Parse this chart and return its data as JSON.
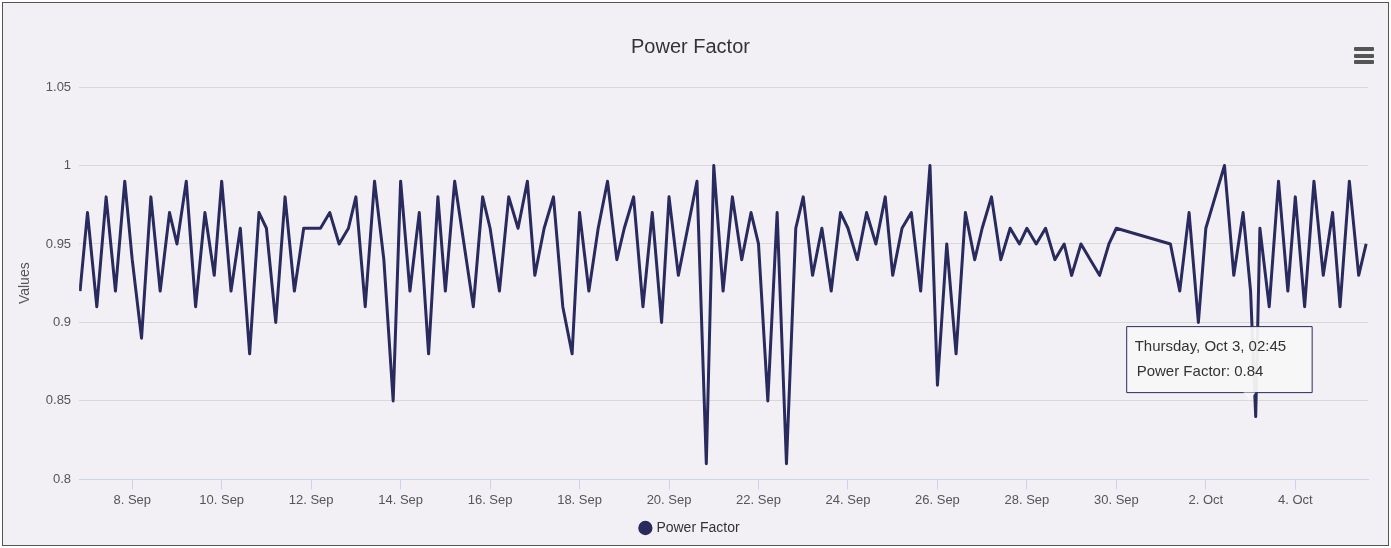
{
  "chart_data": {
    "type": "line",
    "title": "Power Factor",
    "ylabel": "Values",
    "x": [
      "--09-06T20:00",
      "--09-07T00:00",
      "--09-07T05:00",
      "--09-07T10:00",
      "--09-07T15:00",
      "--09-07T20:00",
      "--09-08T00:00",
      "--09-08T05:00",
      "--09-08T10:00",
      "--09-08T15:00",
      "--09-08T20:00",
      "--09-09T00:00",
      "--09-09T05:00",
      "--09-09T10:00",
      "--09-09T15:00",
      "--09-09T20:00",
      "--09-10T00:00",
      "--09-10T05:00",
      "--09-10T10:00",
      "--09-10T15:00",
      "--09-10T20:00",
      "--09-11T00:00",
      "--09-11T05:00",
      "--09-11T10:00",
      "--09-11T15:00",
      "--09-11T20:00",
      "--09-12T00:00",
      "--09-12T05:00",
      "--09-12T10:00",
      "--09-12T15:00",
      "--09-12T20:00",
      "--09-13T00:00",
      "--09-13T05:00",
      "--09-13T10:00",
      "--09-13T15:00",
      "--09-13T20:00",
      "--09-14T00:00",
      "--09-14T05:00",
      "--09-14T10:00",
      "--09-14T15:00",
      "--09-14T20:00",
      "--09-15T00:00",
      "--09-15T05:00",
      "--09-15T10:00",
      "--09-15T15:00",
      "--09-15T20:00",
      "--09-16T00:00",
      "--09-16T05:00",
      "--09-16T10:00",
      "--09-16T15:00",
      "--09-16T20:00",
      "--09-17T00:00",
      "--09-17T05:00",
      "--09-17T10:00",
      "--09-17T15:00",
      "--09-17T20:00",
      "--09-18T00:00",
      "--09-18T05:00",
      "--09-18T10:00",
      "--09-18T15:00",
      "--09-18T20:00",
      "--09-19T00:00",
      "--09-19T05:00",
      "--09-19T10:00",
      "--09-19T15:00",
      "--09-19T20:00",
      "--09-20T00:00",
      "--09-20T05:00",
      "--09-20T10:00",
      "--09-20T15:00",
      "--09-20T20:00",
      "--09-21T00:00",
      "--09-21T05:00",
      "--09-21T10:00",
      "--09-21T15:00",
      "--09-21T20:00",
      "--09-22T00:00",
      "--09-22T05:00",
      "--09-22T10:00",
      "--09-22T15:00",
      "--09-22T20:00",
      "--09-23T00:00",
      "--09-23T05:00",
      "--09-23T10:00",
      "--09-23T15:00",
      "--09-23T20:00",
      "--09-24T00:00",
      "--09-24T05:00",
      "--09-24T10:00",
      "--09-24T15:00",
      "--09-24T20:00",
      "--09-25T00:00",
      "--09-25T05:00",
      "--09-25T10:00",
      "--09-25T15:00",
      "--09-25T20:00",
      "--09-26T00:00",
      "--09-26T05:00",
      "--09-26T10:00",
      "--09-26T15:00",
      "--09-26T20:00",
      "--09-27T00:00",
      "--09-27T05:00",
      "--09-27T10:00",
      "--09-27T15:00",
      "--09-27T20:00",
      "--09-28T00:00",
      "--09-28T05:00",
      "--09-28T10:00",
      "--09-28T15:00",
      "--09-28T20:00",
      "--09-29T00:00",
      "--09-29T05:00",
      "--09-29T10:00",
      "--09-29T15:00",
      "--09-29T20:00",
      "--09-30T00:00",
      "--10-01T05:00",
      "--10-01T10:00",
      "--10-01T15:00",
      "--10-01T20:00",
      "--10-02T00:00",
      "--10-02T05:00",
      "--10-02T10:00",
      "--10-02T15:00",
      "--10-02T20:00",
      "--10-03T00:00",
      "--10-03T02:45",
      "--10-03T05:00",
      "--10-03T10:00",
      "--10-03T15:00",
      "--10-03T20:00",
      "--10-04T00:00",
      "--10-04T05:00",
      "--10-04T10:00",
      "--10-04T15:00",
      "--10-04T20:00",
      "--10-05T00:00",
      "--10-05T05:00",
      "--10-05T10:00",
      "--10-05T14:00"
    ],
    "series": [
      {
        "name": "Power Factor",
        "color": "#292a5e",
        "values": [
          0.92,
          0.97,
          0.91,
          0.98,
          0.92,
          0.99,
          0.94,
          0.89,
          0.98,
          0.92,
          0.97,
          0.95,
          0.99,
          0.91,
          0.97,
          0.93,
          0.99,
          0.92,
          0.96,
          0.88,
          0.97,
          0.96,
          0.9,
          0.98,
          0.92,
          0.96,
          0.96,
          0.96,
          0.97,
          0.95,
          0.96,
          0.98,
          0.91,
          0.99,
          0.94,
          0.85,
          0.99,
          0.92,
          0.97,
          0.88,
          0.98,
          0.92,
          0.99,
          0.95,
          0.91,
          0.98,
          0.96,
          0.92,
          0.98,
          0.96,
          0.99,
          0.93,
          0.96,
          0.98,
          0.91,
          0.88,
          0.97,
          0.92,
          0.96,
          0.99,
          0.94,
          0.96,
          0.98,
          0.91,
          0.97,
          0.9,
          0.98,
          0.93,
          0.96,
          0.99,
          0.81,
          1,
          0.92,
          0.98,
          0.94,
          0.97,
          0.95,
          0.85,
          0.97,
          0.81,
          0.96,
          0.98,
          0.93,
          0.96,
          0.92,
          0.97,
          0.96,
          0.94,
          0.97,
          0.95,
          0.98,
          0.93,
          0.96,
          0.97,
          0.92,
          1,
          0.86,
          0.95,
          0.88,
          0.97,
          0.94,
          0.96,
          0.98,
          0.94,
          0.96,
          0.95,
          0.96,
          0.95,
          0.96,
          0.94,
          0.95,
          0.93,
          0.95,
          0.94,
          0.93,
          0.95,
          0.96,
          0.95,
          0.92,
          0.97,
          0.9,
          0.96,
          0.98,
          1,
          0.93,
          0.97,
          0.92,
          0.84,
          0.96,
          0.91,
          0.99,
          0.92,
          0.98,
          0.91,
          0.99,
          0.93,
          0.97,
          0.91,
          0.99,
          0.93,
          0.95
        ]
      }
    ],
    "xlim": [
      "--09-06T19:30",
      "--10-05T15:00"
    ],
    "xticks": [
      {
        "value": "--09-08",
        "label": "8. Sep"
      },
      {
        "value": "--09-10",
        "label": "10. Sep"
      },
      {
        "value": "--09-12",
        "label": "12. Sep"
      },
      {
        "value": "--09-14",
        "label": "14. Sep"
      },
      {
        "value": "--09-16",
        "label": "16. Sep"
      },
      {
        "value": "--09-18",
        "label": "18. Sep"
      },
      {
        "value": "--09-20",
        "label": "20. Sep"
      },
      {
        "value": "--09-22",
        "label": "22. Sep"
      },
      {
        "value": "--09-24",
        "label": "24. Sep"
      },
      {
        "value": "--09-26",
        "label": "26. Sep"
      },
      {
        "value": "--09-28",
        "label": "28. Sep"
      },
      {
        "value": "--09-30",
        "label": "30. Sep"
      },
      {
        "value": "--10-02",
        "label": "2. Oct"
      },
      {
        "value": "--10-04",
        "label": "4. Oct"
      }
    ],
    "ylim": [
      0.8,
      1.05
    ],
    "yticks": [
      0.8,
      0.85,
      0.9,
      0.95,
      1,
      1.05
    ],
    "grid": "y",
    "legend": "bottom",
    "marker": "none",
    "line_style": "solid",
    "annotations": [
      "Thursday, Oct 3, 02:45",
      "Power Factor: 0.84"
    ]
  }
}
